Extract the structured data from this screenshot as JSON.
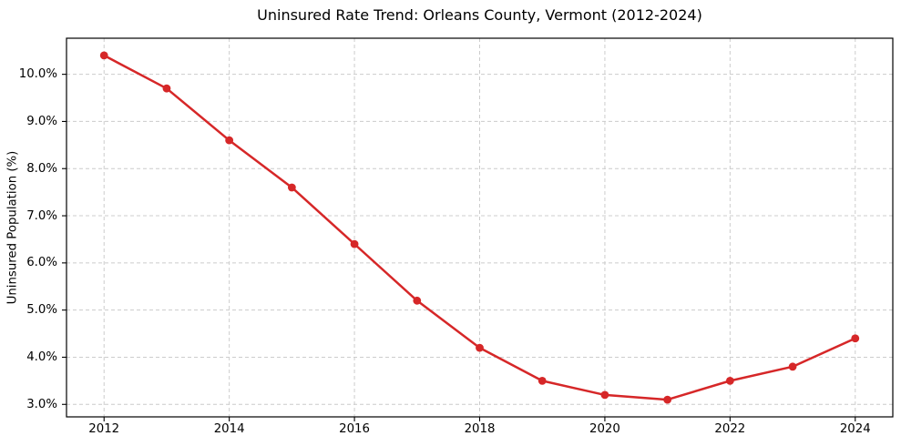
{
  "chart_data": {
    "type": "line",
    "title": "Uninsured Rate Trend: Orleans County, Vermont (2012-2024)",
    "xlabel": "",
    "ylabel": "Uninsured Population (%)",
    "x": [
      2012,
      2013,
      2014,
      2015,
      2016,
      2017,
      2018,
      2019,
      2020,
      2021,
      2022,
      2023,
      2024
    ],
    "values": [
      10.4,
      9.7,
      8.6,
      7.6,
      6.4,
      5.2,
      4.2,
      3.5,
      3.2,
      3.1,
      3.5,
      3.8,
      4.4
    ],
    "xlim": [
      2011.4,
      2024.6
    ],
    "ylim": [
      2.735,
      10.765
    ],
    "xticks": [
      2012,
      2014,
      2016,
      2018,
      2020,
      2022,
      2024
    ],
    "ytick_values": [
      3,
      4,
      5,
      6,
      7,
      8,
      9,
      10
    ],
    "ytick_labels": [
      "3.0%",
      "4.0%",
      "5.0%",
      "6.0%",
      "7.0%",
      "8.0%",
      "9.0%",
      "10.0%"
    ],
    "grid": true,
    "grid_style": "dashed",
    "legend": "none",
    "line_color": "#d62728",
    "marker": "circle",
    "grid_color": "#cccccc",
    "axis_color": "#000000",
    "background_color": "#ffffff"
  }
}
